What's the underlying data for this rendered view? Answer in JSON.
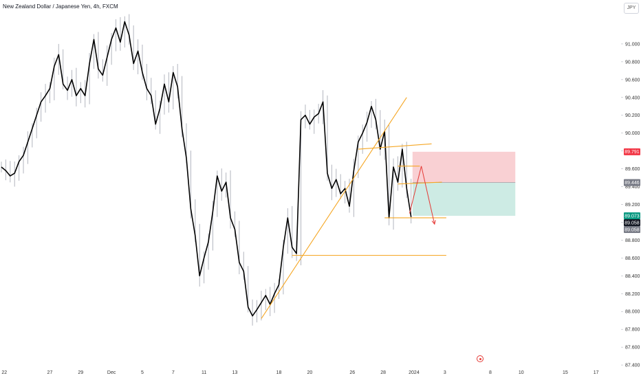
{
  "header": {
    "symbol_title": "New Zealand Dollar / Japanese Yen, 4h, FXCM",
    "currency": "JPY"
  },
  "chart_data": {
    "type": "line",
    "title": "New Zealand Dollar / Japanese Yen, 4h, FXCM",
    "xlabel": "",
    "ylabel": "",
    "ylim": [
      87.37,
      91.3
    ],
    "y_ticks": [
      "91.000",
      "90.800",
      "90.600",
      "90.400",
      "90.200",
      "90.000",
      "89.800",
      "89.600",
      "89.400",
      "89.200",
      "89.000",
      "88.800",
      "88.600",
      "88.400",
      "88.200",
      "88.000",
      "87.800",
      "87.600",
      "87.400"
    ],
    "x_ticks": [
      {
        "label": "22",
        "x": 0.2
      },
      {
        "label": "27",
        "x": 3.3
      },
      {
        "label": "29",
        "x": 5.4
      },
      {
        "label": "Dec",
        "x": 7.5
      },
      {
        "label": "5",
        "x": 9.6
      },
      {
        "label": "7",
        "x": 11.7
      },
      {
        "label": "11",
        "x": 13.8
      },
      {
        "label": "13",
        "x": 15.9
      },
      {
        "label": "18",
        "x": 18.9
      },
      {
        "label": "20",
        "x": 21.0
      },
      {
        "label": "26",
        "x": 23.9
      },
      {
        "label": "28",
        "x": 26.0
      },
      {
        "label": "2024",
        "x": 28.1
      },
      {
        "label": "3",
        "x": 30.2
      },
      {
        "label": "8",
        "x": 33.3
      },
      {
        "label": "10",
        "x": 35.4
      },
      {
        "label": "15",
        "x": 38.4
      },
      {
        "label": "17",
        "x": 40.5
      }
    ],
    "series": [
      {
        "color": "#000000",
        "points": [
          [
            0.0,
            89.62
          ],
          [
            0.3,
            89.58
          ],
          [
            0.6,
            89.52
          ],
          [
            0.9,
            89.55
          ],
          [
            1.2,
            89.68
          ],
          [
            1.5,
            89.75
          ],
          [
            1.8,
            89.9
          ],
          [
            2.1,
            90.05
          ],
          [
            2.4,
            90.2
          ],
          [
            2.7,
            90.35
          ],
          [
            3.0,
            90.42
          ],
          [
            3.3,
            90.5
          ],
          [
            3.6,
            90.75
          ],
          [
            3.9,
            90.88
          ],
          [
            4.2,
            90.55
          ],
          [
            4.5,
            90.48
          ],
          [
            4.8,
            90.6
          ],
          [
            5.1,
            90.42
          ],
          [
            5.4,
            90.5
          ],
          [
            5.7,
            90.42
          ],
          [
            6.0,
            90.78
          ],
          [
            6.3,
            91.05
          ],
          [
            6.6,
            90.72
          ],
          [
            6.9,
            90.65
          ],
          [
            7.2,
            90.85
          ],
          [
            7.5,
            91.05
          ],
          [
            7.8,
            91.18
          ],
          [
            8.1,
            91.02
          ],
          [
            8.4,
            91.25
          ],
          [
            8.7,
            91.1
          ],
          [
            9.0,
            90.78
          ],
          [
            9.3,
            90.92
          ],
          [
            9.6,
            90.68
          ],
          [
            9.9,
            90.5
          ],
          [
            10.2,
            90.42
          ],
          [
            10.5,
            90.1
          ],
          [
            10.8,
            90.28
          ],
          [
            11.1,
            90.55
          ],
          [
            11.4,
            90.35
          ],
          [
            11.7,
            90.68
          ],
          [
            12.0,
            90.52
          ],
          [
            12.3,
            90.05
          ],
          [
            12.6,
            89.72
          ],
          [
            12.9,
            89.15
          ],
          [
            13.2,
            88.85
          ],
          [
            13.5,
            88.4
          ],
          [
            13.8,
            88.6
          ],
          [
            14.1,
            88.78
          ],
          [
            14.4,
            89.12
          ],
          [
            14.7,
            89.52
          ],
          [
            15.0,
            89.35
          ],
          [
            15.3,
            89.45
          ],
          [
            15.6,
            89.05
          ],
          [
            15.9,
            88.92
          ],
          [
            16.2,
            88.55
          ],
          [
            16.5,
            88.45
          ],
          [
            16.8,
            88.05
          ],
          [
            17.1,
            87.95
          ],
          [
            17.4,
            88.02
          ],
          [
            17.7,
            88.1
          ],
          [
            18.0,
            88.18
          ],
          [
            18.3,
            88.08
          ],
          [
            18.6,
            88.2
          ],
          [
            18.9,
            88.3
          ],
          [
            19.2,
            88.72
          ],
          [
            19.5,
            89.05
          ],
          [
            19.8,
            88.72
          ],
          [
            20.1,
            88.65
          ],
          [
            20.4,
            90.15
          ],
          [
            20.7,
            90.2
          ],
          [
            21.0,
            90.1
          ],
          [
            21.3,
            90.18
          ],
          [
            21.6,
            90.22
          ],
          [
            21.9,
            90.35
          ],
          [
            22.2,
            89.55
          ],
          [
            22.5,
            89.38
          ],
          [
            22.8,
            89.48
          ],
          [
            23.1,
            89.32
          ],
          [
            23.4,
            89.38
          ],
          [
            23.7,
            89.18
          ],
          [
            24.0,
            89.58
          ],
          [
            24.3,
            89.9
          ],
          [
            24.6,
            90.0
          ],
          [
            24.9,
            90.12
          ],
          [
            25.2,
            90.3
          ],
          [
            25.5,
            90.15
          ],
          [
            25.8,
            89.82
          ],
          [
            26.1,
            90.02
          ],
          [
            26.4,
            89.05
          ],
          [
            26.7,
            89.62
          ],
          [
            27.0,
            89.45
          ],
          [
            27.3,
            89.82
          ],
          [
            27.6,
            89.38
          ],
          [
            27.9,
            89.06
          ]
        ]
      }
    ],
    "annotations": {
      "short_position": {
        "entry": 89.446,
        "stop": 89.791,
        "target": 89.073,
        "start_x": 28.0,
        "end_x": 35.0
      },
      "price_tags": [
        {
          "label": "89.791",
          "value": 89.791,
          "color": "#f23645"
        },
        {
          "label": "89.446",
          "value": 89.446,
          "color": "#787b86"
        },
        {
          "label": "89.073",
          "value": 89.073,
          "color": "#089981"
        },
        {
          "label": "89.058",
          "value": 89.058,
          "color": "#131722"
        },
        {
          "label": "89.058",
          "value": 89.058,
          "color": "#787b86"
        }
      ],
      "trend_lines": [
        {
          "from": [
            17.7,
            87.92
          ],
          "to": [
            27.6,
            90.4
          ]
        },
        {
          "from": [
            24.3,
            89.82
          ],
          "to": [
            29.3,
            89.88
          ]
        },
        {
          "from": [
            19.8,
            88.63
          ],
          "to": [
            30.3,
            88.63
          ]
        },
        {
          "from": [
            26.1,
            89.05
          ],
          "to": [
            30.3,
            89.05
          ]
        },
        {
          "from": [
            27.0,
            89.63
          ],
          "to": [
            28.5,
            89.63
          ]
        },
        {
          "from": [
            27.0,
            89.43
          ],
          "to": [
            30.0,
            89.45
          ]
        }
      ],
      "forecast_path": [
        [
          27.8,
          89.1
        ],
        [
          28.6,
          89.63
        ],
        [
          29.5,
          88.98
        ]
      ],
      "colors": {
        "price_line": "#000000",
        "wick": "#b2b5be",
        "trend": "#f5a623",
        "forecast": "#e53935",
        "stop_zone": "#f9d0d3",
        "target_zone": "#cdebe4"
      }
    }
  }
}
